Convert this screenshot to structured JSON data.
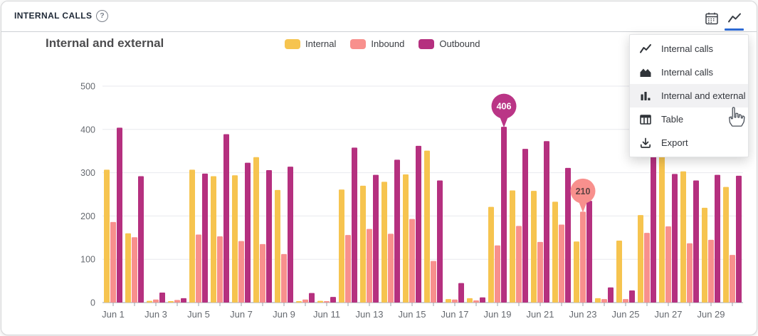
{
  "panel": {
    "title": "INTERNAL CALLS",
    "help_glyph": "?"
  },
  "toolbar": {
    "icons": [
      "calendar-icon",
      "line-chart-icon"
    ],
    "active_icon": "line-chart-icon",
    "active_color": "#2e6bd6"
  },
  "chart_header": {
    "title": "Internal and external"
  },
  "menu": {
    "items": [
      {
        "name": "internal-calls-line",
        "icon": "line-chart-icon",
        "label": "Internal calls",
        "selected": false
      },
      {
        "name": "internal-calls-area",
        "icon": "area-chart-icon",
        "label": "Internal calls",
        "selected": false
      },
      {
        "name": "internal-and-external",
        "icon": "bar-chart-icon",
        "label": "Internal and external",
        "selected": true
      },
      {
        "name": "table",
        "icon": "table-icon",
        "label": "Table",
        "selected": false
      },
      {
        "name": "export",
        "icon": "download-icon",
        "label": "Export",
        "selected": false
      }
    ],
    "highlight_color": "#f1f1f3"
  },
  "cursor": {
    "type": "hand-pointer",
    "over": "Internal and external"
  },
  "chart_data": {
    "type": "bar",
    "title": "Internal and external",
    "categories": [
      "Jun 1",
      "Jun 2",
      "Jun 3",
      "Jun 4",
      "Jun 5",
      "Jun 6",
      "Jun 7",
      "Jun 8",
      "Jun 9",
      "Jun 10",
      "Jun 11",
      "Jun 12",
      "Jun 13",
      "Jun 14",
      "Jun 15",
      "Jun 16",
      "Jun 17",
      "Jun 18",
      "Jun 19",
      "Jun 20",
      "Jun 21",
      "Jun 22",
      "Jun 23",
      "Jun 24",
      "Jun 25",
      "Jun 26",
      "Jun 27",
      "Jun 28",
      "Jun 29",
      "Jun 30"
    ],
    "series": [
      {
        "name": "Internal",
        "color": "#f6c44f",
        "values": [
          307,
          160,
          4,
          3,
          307,
          292,
          294,
          336,
          260,
          3,
          4,
          261,
          270,
          279,
          296,
          351,
          8,
          10,
          221,
          259,
          258,
          233,
          141,
          10,
          143,
          202,
          345,
          303,
          219,
          267
        ]
      },
      {
        "name": "Inbound",
        "color": "#f8908d",
        "values": [
          186,
          151,
          7,
          6,
          157,
          153,
          142,
          135,
          112,
          7,
          3,
          156,
          170,
          159,
          193,
          96,
          7,
          5,
          132,
          177,
          140,
          180,
          210,
          8,
          8,
          161,
          176,
          137,
          145,
          110
        ]
      },
      {
        "name": "Outbound",
        "color": "#b5307f",
        "values": [
          404,
          292,
          23,
          10,
          298,
          389,
          323,
          306,
          314,
          22,
          13,
          358,
          295,
          330,
          362,
          282,
          45,
          12,
          406,
          355,
          373,
          311,
          235,
          35,
          28,
          340,
          297,
          282,
          295,
          293
        ]
      }
    ],
    "ylim": [
      0,
      500
    ],
    "yticks": [
      0,
      100,
      200,
      300,
      400,
      500
    ],
    "x_labeled_ticks": [
      "Jun 1",
      "Jun 3",
      "Jun 5",
      "Jun 7",
      "Jun 9",
      "Jun 11",
      "Jun 13",
      "Jun 15",
      "Jun 17",
      "Jun 19",
      "Jun 21",
      "Jun 23",
      "Jun 25",
      "Jun 27",
      "Jun 29"
    ],
    "grid": true,
    "legend_position": "top",
    "annotations": [
      {
        "series": "Outbound",
        "category": "Jun 19",
        "value": 406,
        "bubble_color": "#ba3586",
        "text_color": "#ffffff"
      },
      {
        "series": "Inbound",
        "category": "Jun 23",
        "value": 210,
        "bubble_color": "#f8908d",
        "text_color": "#5e4242"
      }
    ],
    "axis_color": "#9aa0a8",
    "gridline_color": "#e8e9ee",
    "tick_label_color": "#666a70"
  }
}
